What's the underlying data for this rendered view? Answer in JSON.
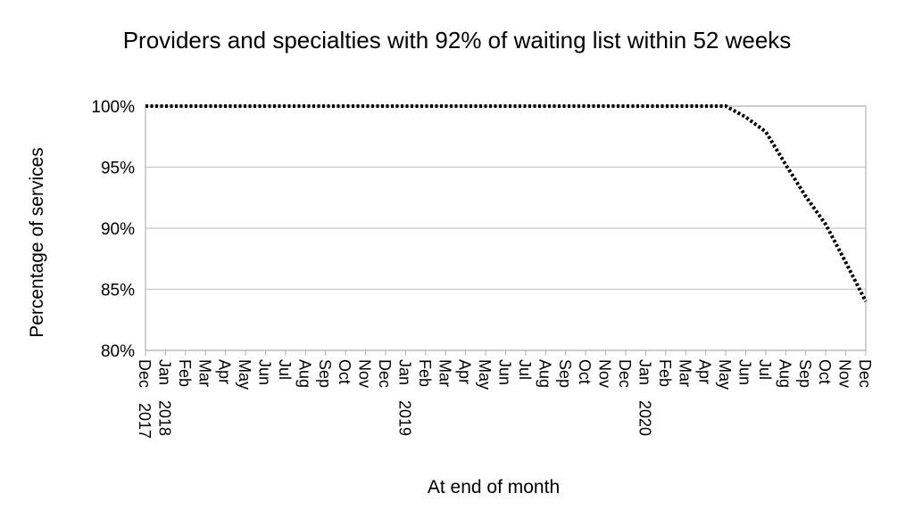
{
  "chart_data": {
    "type": "line",
    "title": "Providers and specialties with 92% of waiting list within 52 weeks",
    "x_label": "At end of month",
    "y_label": "Percentage of  services",
    "categories": [
      "Dec 2017",
      "Jan 2018",
      "Feb",
      "Mar",
      "Apr",
      "May",
      "Jun",
      "Jul",
      "Aug",
      "Sep",
      "Oct",
      "Nov",
      "Dec",
      "Jan 2019",
      "Feb",
      "Mar",
      "Apr",
      "May",
      "Jun",
      "Jul",
      "Aug",
      "Sep",
      "Oct",
      "Nov",
      "Dec",
      "Jan 2020",
      "Feb",
      "Mar",
      "Apr",
      "May",
      "Jun",
      "Jul",
      "Aug",
      "Sep",
      "Oct",
      "Nov",
      "Dec"
    ],
    "series": [
      {
        "color": "#000000",
        "values": [
          100,
          100,
          100,
          100,
          100,
          100,
          100,
          100,
          100,
          100,
          100,
          100,
          100,
          100,
          100,
          100,
          100,
          100,
          100,
          100,
          100,
          100,
          100,
          100,
          100,
          100,
          100,
          100,
          100,
          100,
          99.1,
          97.9,
          95.2,
          92.6,
          90.3,
          87.2,
          84.0
        ]
      }
    ],
    "ylim": [
      80,
      100
    ],
    "yticks": [
      {
        "value": 80,
        "label": "80%"
      },
      {
        "value": 85,
        "label": "85%"
      },
      {
        "value": 90,
        "label": "90%"
      },
      {
        "value": 95,
        "label": "95%"
      },
      {
        "value": 100,
        "label": "100%"
      }
    ],
    "grid": true
  }
}
